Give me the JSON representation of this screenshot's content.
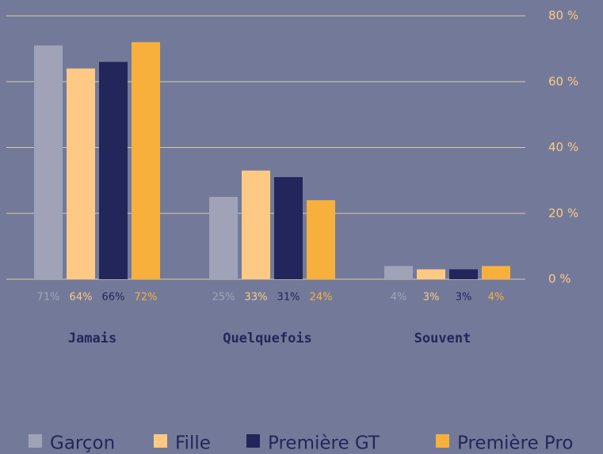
{
  "chart_data": {
    "type": "bar",
    "categories": [
      "Jamais",
      "Quelquefois",
      "Souvent"
    ],
    "series": [
      {
        "name": "Garçon",
        "color": "#a0a3b8",
        "values": [
          71,
          25,
          4
        ],
        "value_labels": [
          "71%",
          "25%",
          "4%"
        ]
      },
      {
        "name": "Fille",
        "color": "#fdc984",
        "values": [
          64,
          33,
          3
        ],
        "value_labels": [
          "64%",
          "33%",
          "3%"
        ]
      },
      {
        "name": "Première GT",
        "color": "#23265a",
        "values": [
          66,
          31,
          3
        ],
        "value_labels": [
          "66%",
          "31%",
          "3%"
        ]
      },
      {
        "name": "Première Pro",
        "color": "#f8b03d",
        "values": [
          72,
          24,
          4
        ],
        "value_labels": [
          "72%",
          "24%",
          "4%"
        ]
      }
    ],
    "ylim": [
      0,
      80
    ],
    "yticks": [
      {
        "value": 0,
        "label": "0 %"
      },
      {
        "value": 20,
        "label": "20 %"
      },
      {
        "value": 40,
        "label": "40 %"
      },
      {
        "value": 60,
        "label": "60 %"
      },
      {
        "value": 80,
        "label": "80 %"
      }
    ],
    "grid": true,
    "legend": "bottom"
  }
}
